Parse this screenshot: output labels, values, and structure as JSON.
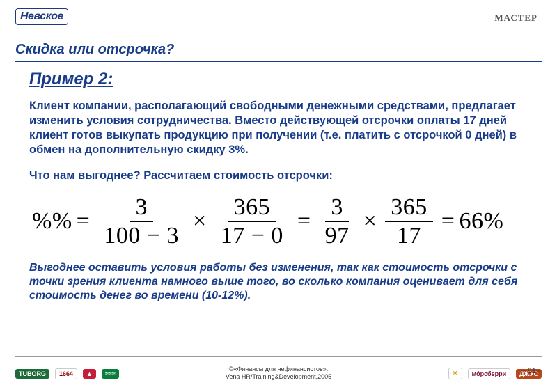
{
  "logos": {
    "top_left": "Невское",
    "top_right": "МАСТЕР"
  },
  "title": "Скидка или отсрочка?",
  "example_label": "Пример 2:",
  "paragraph1": "Клиент компании, располагающий свободными денежными средствами, предлагает изменить условия сотрудничества. Вместо действующей отсрочки оплаты 17 дней клиент готов выкупать продукцию при получении (т.е. платить с отсрочкой 0 дней) в обмен на дополнительную скидку 3%.",
  "paragraph2": "Что нам выгоднее? Рассчитаем стоимость отсрочки:",
  "formula": {
    "lhs": "%%",
    "f1_num": "3",
    "f1_den": "100 − 3",
    "f2_num": "365",
    "f2_den": "17 − 0",
    "f3_num": "3",
    "f3_den": "97",
    "f4_num": "365",
    "f4_den": "17",
    "result": "66%"
  },
  "conclusion": "Выгоднее оставить условия работы без изменения, так как стоимость отсрочки с точки зрения клиента намного выше того, во сколько компания оценивает для себя стоимость денег во времени (10-12%).",
  "footer": {
    "copyright_line1": "©«Финансы для нефинансистов».",
    "copyright_line2": "Vena HR/Training&Development,2005",
    "page": "– 81–",
    "left_logos": [
      {
        "text": "TUBORG",
        "bg": "#1e6b3a",
        "fg": "#ffffff"
      },
      {
        "text": "1664",
        "bg": "#ffffff",
        "fg": "#8b0000"
      },
      {
        "text": "▲",
        "bg": "#c41e3a",
        "fg": "#ffffff"
      },
      {
        "text": "≈≈≈",
        "bg": "#0a7d3c",
        "fg": "#ffffff"
      }
    ],
    "right_logos": [
      {
        "text": "☀",
        "bg": "#ffffff",
        "fg": "#d4a017"
      },
      {
        "text": "мо́рсберри",
        "bg": "#ffffff",
        "fg": "#7a1030"
      },
      {
        "text": "ДЖУС",
        "bg": "#b8471c",
        "fg": "#ffffff"
      }
    ]
  }
}
